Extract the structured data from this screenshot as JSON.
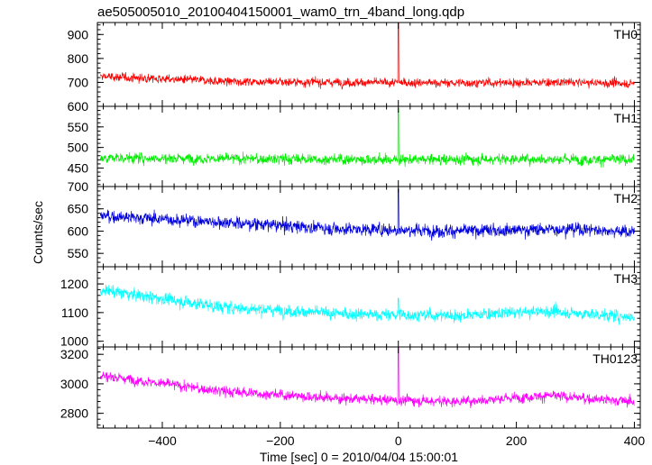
{
  "title": "ae505005010_20100404150001_wam0_trn_4band_long.qdp",
  "chart_data": {
    "type": "line",
    "title": "ae505005010_20100404150001_wam0_trn_4band_long.qdp",
    "xlabel": "Time [sec] 0 = 2010/04/04 15:00:01",
    "ylabel": "Counts/sec",
    "xlim": [
      -510,
      410
    ],
    "x_ticks": [
      -400,
      -200,
      0,
      200,
      400
    ],
    "x_tick_labels": [
      "−400",
      "−200",
      "0",
      "200",
      "400"
    ],
    "spike_x": 0,
    "grid": false,
    "series": [
      {
        "name": "TH0",
        "color": "#ff0000",
        "ylim": [
          600,
          950
        ],
        "y_ticks": [
          600,
          700,
          800,
          900
        ],
        "baseline": [
          [
            -510,
            725
          ],
          [
            -300,
            705
          ],
          [
            -100,
            700
          ],
          [
            100,
            698
          ],
          [
            300,
            700
          ],
          [
            400,
            695
          ]
        ],
        "noise": 28,
        "spike_peak": 950
      },
      {
        "name": "TH1",
        "color": "#00ee00",
        "ylim": [
          405,
          600
        ],
        "y_ticks": [
          450,
          500,
          550
        ],
        "baseline": [
          [
            -510,
            475
          ],
          [
            -200,
            472
          ],
          [
            0,
            470
          ],
          [
            200,
            472
          ],
          [
            400,
            470
          ]
        ],
        "noise": 20,
        "spike_peak": 595
      },
      {
        "name": "TH2",
        "color": "#0000dd",
        "ylim": [
          520,
          700
        ],
        "y_ticks": [
          550,
          600,
          650,
          700
        ],
        "baseline": [
          [
            -510,
            635
          ],
          [
            -300,
            620
          ],
          [
            -100,
            605
          ],
          [
            100,
            600
          ],
          [
            300,
            605
          ],
          [
            400,
            598
          ]
        ],
        "noise": 22,
        "spike_peak": 695
      },
      {
        "name": "TH3",
        "color": "#00ffff",
        "ylim": [
          980,
          1260
        ],
        "y_ticks": [
          1000,
          1100,
          1200
        ],
        "baseline": [
          [
            -510,
            1180
          ],
          [
            -300,
            1120
          ],
          [
            -100,
            1095
          ],
          [
            100,
            1090
          ],
          [
            250,
            1105
          ],
          [
            400,
            1085
          ]
        ],
        "noise": 33,
        "spike_peak": 1150
      },
      {
        "name": "TH0123",
        "color": "#ff00ff",
        "ylim": [
          2700,
          3250
        ],
        "y_ticks": [
          2800,
          3000,
          3200
        ],
        "baseline": [
          [
            -510,
            3060
          ],
          [
            -300,
            2950
          ],
          [
            -100,
            2900
          ],
          [
            100,
            2880
          ],
          [
            250,
            2920
          ],
          [
            400,
            2880
          ]
        ],
        "noise": 55,
        "spike_peak": 3250
      }
    ]
  }
}
